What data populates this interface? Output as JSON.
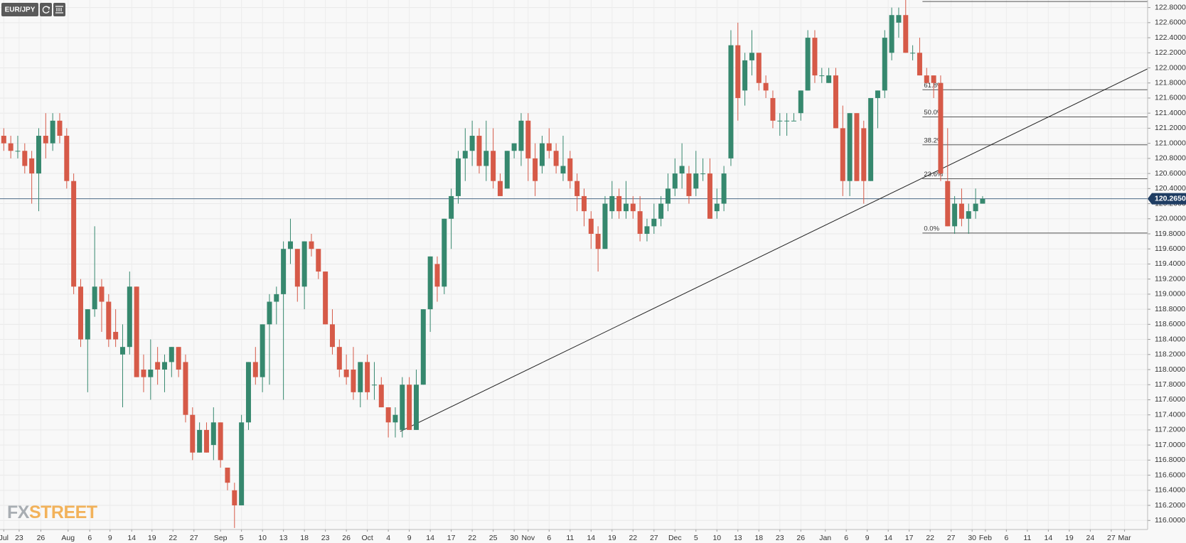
{
  "chart_data": {
    "type": "candlestick",
    "symbol": "EUR/JPY",
    "logo": [
      "FX",
      "STREET"
    ],
    "up_color": "#36886e",
    "down_color": "#d65a48",
    "grid": true,
    "ohlc": {
      "open": [
        121.1,
        121.0,
        120.9,
        120.9,
        120.8,
        120.6,
        121.1,
        121.0,
        121.3,
        121.1,
        120.5,
        119.1,
        118.4,
        118.8,
        119.1,
        118.9,
        118.5,
        118.2,
        118.3,
        119.1,
        118.0,
        117.9,
        118.1,
        118.0,
        118.1,
        118.3,
        118.1,
        117.4,
        116.9,
        117.2,
        117.0,
        117.3,
        116.7,
        116.4,
        116.2,
        117.3,
        118.1,
        117.9,
        118.6,
        118.9,
        119.0,
        119.6,
        119.6,
        119.1,
        119.7,
        119.6,
        119.3,
        118.6,
        118.3,
        118.0,
        118.0,
        117.7,
        118.1,
        117.8,
        117.8,
        117.5,
        117.3,
        117.2,
        117.8,
        117.2,
        117.8,
        118.8,
        119.4,
        119.1,
        120.0,
        120.3,
        120.8,
        120.9,
        121.1,
        120.7,
        120.9,
        120.5,
        120.4,
        120.9,
        120.9,
        121.3,
        120.8,
        120.7,
        121.0,
        120.9,
        120.6,
        120.8,
        120.5,
        120.3,
        120.0,
        119.8,
        119.6,
        120.1,
        120.3,
        120.1,
        120.2,
        120.1,
        119.8,
        119.9,
        120.0,
        120.2,
        120.4,
        120.6,
        120.6,
        120.4,
        120.6,
        120.6,
        120.1,
        120.2,
        120.8,
        122.3,
        121.7,
        122.1,
        122.2,
        121.8,
        121.6,
        121.3,
        121.3,
        121.3,
        121.4,
        121.7,
        122.4,
        121.9,
        121.8,
        121.9,
        121.2,
        120.5,
        121.4,
        121.2,
        120.5,
        121.6,
        121.7,
        122.2,
        122.6,
        122.7,
        122.2,
        122.2,
        121.9,
        121.9,
        121.8,
        120.5,
        119.9,
        120.2,
        120.0,
        120.1,
        120.2
      ],
      "high": [
        121.2,
        121.1,
        121.1,
        121.0,
        120.9,
        121.2,
        121.4,
        121.4,
        121.4,
        121.2,
        120.6,
        119.2,
        118.8,
        119.9,
        119.2,
        119.0,
        118.8,
        118.6,
        119.3,
        119.1,
        118.2,
        118.4,
        118.3,
        118.2,
        118.3,
        118.3,
        118.2,
        117.5,
        117.3,
        117.3,
        117.5,
        117.3,
        116.7,
        116.5,
        117.4,
        118.1,
        118.3,
        118.6,
        119.0,
        119.1,
        119.7,
        120.0,
        119.6,
        119.7,
        119.8,
        119.6,
        119.3,
        118.8,
        118.4,
        118.2,
        118.3,
        118.1,
        118.2,
        118.1,
        117.9,
        117.5,
        117.5,
        117.9,
        117.9,
        118.0,
        118.8,
        119.5,
        119.5,
        120.0,
        120.4,
        120.9,
        121.2,
        121.3,
        121.2,
        121.3,
        121.2,
        120.6,
        120.9,
        121.0,
        121.4,
        121.4,
        121.0,
        121.1,
        121.2,
        121.0,
        121.1,
        120.9,
        120.6,
        120.4,
        120.1,
        119.9,
        120.3,
        120.5,
        120.4,
        120.5,
        120.3,
        120.3,
        120.0,
        120.2,
        120.3,
        120.6,
        120.8,
        121.0,
        120.7,
        120.9,
        120.8,
        120.8,
        120.4,
        120.7,
        122.5,
        122.6,
        122.2,
        122.5,
        122.2,
        121.9,
        121.7,
        121.4,
        121.4,
        121.4,
        121.7,
        122.5,
        122.5,
        122.0,
        122.0,
        122.0,
        121.5,
        121.4,
        121.4,
        121.3,
        121.6,
        121.7,
        122.5,
        122.8,
        122.8,
        122.9,
        122.3,
        122.4,
        122.0,
        121.9,
        121.9,
        121.2,
        120.3,
        120.4,
        120.2,
        120.4,
        120.3
      ],
      "low": [
        120.9,
        120.8,
        120.8,
        120.6,
        120.2,
        120.1,
        120.8,
        120.9,
        121.0,
        120.4,
        119.0,
        118.3,
        117.7,
        118.7,
        118.5,
        118.3,
        118.3,
        117.5,
        118.2,
        117.9,
        117.7,
        117.6,
        117.8,
        117.7,
        117.9,
        117.9,
        117.3,
        116.8,
        116.9,
        116.9,
        116.8,
        116.7,
        116.4,
        115.9,
        116.2,
        117.2,
        117.8,
        117.7,
        117.8,
        118.6,
        117.6,
        119.4,
        118.9,
        118.8,
        119.5,
        119.2,
        118.6,
        118.2,
        117.9,
        117.8,
        117.6,
        117.5,
        117.6,
        117.6,
        117.5,
        117.1,
        117.1,
        117.1,
        117.2,
        117.2,
        117.8,
        118.5,
        118.9,
        119.0,
        119.6,
        120.2,
        120.5,
        120.7,
        120.6,
        120.5,
        120.4,
        120.3,
        120.4,
        120.8,
        120.7,
        120.5,
        120.3,
        120.6,
        120.8,
        120.6,
        120.5,
        120.4,
        120.1,
        119.9,
        119.6,
        119.3,
        119.6,
        120.0,
        120.0,
        120.0,
        120.0,
        119.7,
        119.7,
        119.8,
        119.9,
        120.1,
        120.3,
        120.4,
        120.2,
        120.3,
        120.5,
        120.0,
        120.0,
        120.1,
        120.7,
        121.3,
        121.5,
        121.9,
        121.7,
        121.6,
        121.2,
        121.1,
        121.1,
        121.3,
        121.3,
        121.7,
        121.8,
        121.8,
        121.8,
        121.2,
        120.3,
        120.3,
        120.5,
        120.2,
        120.5,
        121.2,
        121.6,
        122.1,
        122.4,
        122.2,
        122.1,
        121.9,
        121.8,
        121.6,
        120.5,
        119.9,
        119.8,
        119.9,
        119.8,
        120.0,
        120.2
      ],
      "close": [
        121.0,
        120.9,
        120.9,
        120.7,
        120.6,
        121.1,
        121.0,
        121.3,
        121.1,
        120.5,
        119.1,
        118.4,
        118.8,
        119.1,
        118.9,
        118.4,
        118.4,
        118.3,
        119.1,
        117.9,
        117.9,
        118.0,
        118.0,
        118.1,
        118.3,
        118.0,
        117.4,
        116.9,
        117.2,
        116.9,
        117.3,
        116.8,
        116.5,
        116.2,
        117.3,
        118.1,
        117.9,
        118.6,
        118.9,
        119.0,
        119.6,
        119.7,
        119.1,
        119.7,
        119.6,
        119.3,
        118.6,
        118.3,
        118.0,
        117.9,
        117.7,
        118.1,
        117.7,
        117.8,
        117.5,
        117.3,
        117.4,
        117.8,
        117.2,
        117.8,
        118.8,
        119.5,
        119.1,
        120.0,
        120.3,
        120.8,
        120.9,
        121.1,
        120.7,
        120.9,
        120.5,
        120.3,
        120.9,
        121.0,
        121.3,
        120.8,
        120.5,
        121.0,
        120.9,
        120.7,
        120.7,
        120.5,
        120.3,
        120.1,
        119.8,
        119.6,
        120.2,
        120.3,
        120.1,
        120.2,
        120.1,
        119.8,
        119.9,
        120.0,
        120.2,
        120.4,
        120.6,
        120.7,
        120.3,
        120.6,
        120.6,
        120.0,
        120.2,
        120.6,
        122.3,
        121.6,
        122.1,
        122.2,
        121.8,
        121.7,
        121.3,
        121.3,
        121.3,
        121.3,
        121.7,
        122.4,
        121.9,
        121.9,
        121.9,
        121.2,
        120.5,
        121.4,
        120.5,
        120.5,
        121.6,
        121.7,
        122.4,
        122.7,
        122.7,
        122.2,
        122.2,
        121.9,
        121.8,
        121.8,
        120.6,
        119.9,
        120.2,
        120.0,
        120.1,
        120.2,
        120.265
      ]
    },
    "xlim": [
      -0.54,
      163.6
    ],
    "xticks": [
      {
        "value": 0,
        "label": "Jul"
      },
      {
        "value": 2.2,
        "label": "23"
      },
      {
        "value": 5.3,
        "label": "26"
      },
      {
        "value": 9.2,
        "label": "Aug"
      },
      {
        "value": 12.3,
        "label": "6"
      },
      {
        "value": 15.2,
        "label": "9"
      },
      {
        "value": 18.3,
        "label": "14"
      },
      {
        "value": 21.2,
        "label": "19"
      },
      {
        "value": 24.2,
        "label": "22"
      },
      {
        "value": 27.2,
        "label": "27"
      },
      {
        "value": 31,
        "label": "Sep"
      },
      {
        "value": 34,
        "label": "5"
      },
      {
        "value": 37,
        "label": "10"
      },
      {
        "value": 40,
        "label": "13"
      },
      {
        "value": 43,
        "label": "18"
      },
      {
        "value": 46,
        "label": "23"
      },
      {
        "value": 49,
        "label": "26"
      },
      {
        "value": 52,
        "label": "Oct"
      },
      {
        "value": 55,
        "label": "4"
      },
      {
        "value": 58,
        "label": "9"
      },
      {
        "value": 61,
        "label": "14"
      },
      {
        "value": 64,
        "label": "17"
      },
      {
        "value": 67,
        "label": "22"
      },
      {
        "value": 70,
        "label": "25"
      },
      {
        "value": 73,
        "label": "30"
      },
      {
        "value": 75,
        "label": "Nov"
      },
      {
        "value": 78,
        "label": "6"
      },
      {
        "value": 81,
        "label": "11"
      },
      {
        "value": 84,
        "label": "14"
      },
      {
        "value": 87,
        "label": "19"
      },
      {
        "value": 90,
        "label": "22"
      },
      {
        "value": 93,
        "label": "27"
      },
      {
        "value": 96,
        "label": "Dec"
      },
      {
        "value": 99,
        "label": "5"
      },
      {
        "value": 102,
        "label": "10"
      },
      {
        "value": 105,
        "label": "13"
      },
      {
        "value": 108,
        "label": "18"
      },
      {
        "value": 111,
        "label": "23"
      },
      {
        "value": 114,
        "label": "26"
      },
      {
        "value": 117.5,
        "label": "Jan"
      },
      {
        "value": 120.5,
        "label": "6"
      },
      {
        "value": 123.5,
        "label": "9"
      },
      {
        "value": 126.5,
        "label": "14"
      },
      {
        "value": 129.5,
        "label": "17"
      },
      {
        "value": 132.5,
        "label": "22"
      },
      {
        "value": 135.5,
        "label": "27"
      },
      {
        "value": 138.5,
        "label": "30"
      },
      {
        "value": 140.4,
        "label": "Feb"
      },
      {
        "value": 143.4,
        "label": "6"
      },
      {
        "value": 146.4,
        "label": "11"
      },
      {
        "value": 149.4,
        "label": "14"
      },
      {
        "value": 152.4,
        "label": "19"
      },
      {
        "value": 155.4,
        "label": "24"
      },
      {
        "value": 158.4,
        "label": "27"
      },
      {
        "value": 160.3,
        "label": "Mar"
      }
    ],
    "ylim": [
      115.88,
      122.9
    ],
    "yticks": [
      {
        "value": 116.0,
        "label": "116.0000"
      },
      {
        "value": 116.2,
        "label": "116.2000"
      },
      {
        "value": 116.4,
        "label": "116.4000"
      },
      {
        "value": 116.6,
        "label": "116.6000"
      },
      {
        "value": 116.8,
        "label": "116.8000"
      },
      {
        "value": 117.0,
        "label": "117.0000"
      },
      {
        "value": 117.2,
        "label": "117.2000"
      },
      {
        "value": 117.4,
        "label": "117.4000"
      },
      {
        "value": 117.6,
        "label": "117.6000"
      },
      {
        "value": 117.8,
        "label": "117.8000"
      },
      {
        "value": 118.0,
        "label": "118.0000"
      },
      {
        "value": 118.2,
        "label": "118.2000"
      },
      {
        "value": 118.4,
        "label": "118.4000"
      },
      {
        "value": 118.6,
        "label": "118.6000"
      },
      {
        "value": 118.8,
        "label": "118.8000"
      },
      {
        "value": 119.0,
        "label": "119.0000"
      },
      {
        "value": 119.2,
        "label": "119.2000"
      },
      {
        "value": 119.4,
        "label": "119.4000"
      },
      {
        "value": 119.6,
        "label": "119.6000"
      },
      {
        "value": 119.8,
        "label": "119.8000"
      },
      {
        "value": 120.0,
        "label": "120.0000"
      },
      {
        "value": 120.2,
        "label": "120.2000"
      },
      {
        "value": 120.4,
        "label": "120.4000"
      },
      {
        "value": 120.6,
        "label": "120.6000"
      },
      {
        "value": 120.8,
        "label": "120.8000"
      },
      {
        "value": 121.0,
        "label": "121.0000"
      },
      {
        "value": 121.2,
        "label": "121.2000"
      },
      {
        "value": 121.4,
        "label": "121.4000"
      },
      {
        "value": 121.6,
        "label": "121.6000"
      },
      {
        "value": 121.8,
        "label": "121.8000"
      },
      {
        "value": 122.0,
        "label": "122.0000"
      },
      {
        "value": 122.2,
        "label": "122.2000"
      },
      {
        "value": 122.4,
        "label": "122.4000"
      },
      {
        "value": 122.6,
        "label": "122.6000"
      },
      {
        "value": 122.8,
        "label": "122.8000"
      }
    ],
    "last_price": {
      "value": 120.265,
      "label": "120.2650"
    },
    "fibonacci": {
      "start": 131.4,
      "top": 122.88,
      "levels": [
        {
          "value": 119.81,
          "label": "0.0%"
        },
        {
          "value": 120.53,
          "label": "23.6%"
        },
        {
          "value": 120.98,
          "label": "38.2%"
        },
        {
          "value": 121.35,
          "label": "50.0%"
        },
        {
          "value": 121.71,
          "label": "61.8%"
        }
      ]
    },
    "trendline": {
      "x": [
        56.7,
        164.1
      ],
      "y": [
        117.18,
        122.01
      ]
    }
  }
}
